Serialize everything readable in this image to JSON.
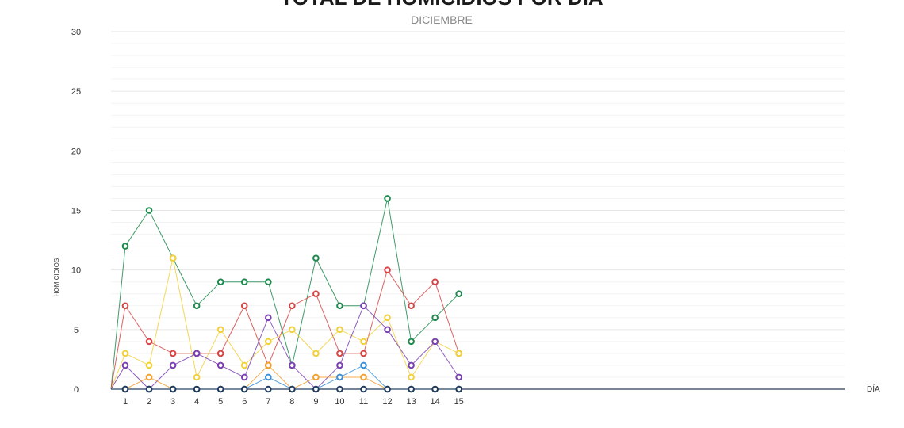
{
  "chart_data": {
    "type": "line",
    "title": "TOTAL DE HOMICIDIOS POR DÍA",
    "subtitle": "DICIEMBRE",
    "xlabel": "DÍA",
    "ylabel": "HOMICIDIOS",
    "ylim": [
      0,
      30
    ],
    "yticks": [
      0,
      5,
      10,
      15,
      20,
      25,
      30
    ],
    "x": [
      1,
      2,
      3,
      4,
      5,
      6,
      7,
      8,
      9,
      10,
      11,
      12,
      13,
      14,
      15
    ],
    "grid": true,
    "series": [
      {
        "color": "#1e8a4e",
        "values": [
          12,
          15,
          11,
          7,
          9,
          9,
          9,
          2,
          11,
          7,
          7,
          16,
          4,
          6,
          8
        ]
      },
      {
        "color": "#d64545",
        "values": [
          7,
          4,
          3,
          3,
          3,
          7,
          2,
          7,
          8,
          3,
          3,
          10,
          7,
          9,
          3
        ]
      },
      {
        "color": "#f2d03b",
        "values": [
          3,
          2,
          11,
          1,
          5,
          2,
          4,
          5,
          3,
          5,
          4,
          6,
          1,
          4,
          3
        ]
      },
      {
        "color": "#7a3fb0",
        "values": [
          2,
          0,
          2,
          3,
          2,
          1,
          6,
          2,
          0,
          2,
          7,
          5,
          2,
          4,
          1
        ]
      },
      {
        "color": "#f0a030",
        "values": [
          0,
          1,
          0,
          0,
          0,
          0,
          2,
          0,
          1,
          1,
          1,
          0,
          0,
          0,
          0
        ]
      },
      {
        "color": "#3a8fd6",
        "values": [
          0,
          0,
          0,
          0,
          0,
          0,
          1,
          0,
          0,
          1,
          2,
          0,
          0,
          0,
          0
        ]
      },
      {
        "color": "#1f3a5a",
        "values": [
          0,
          0,
          0,
          0,
          0,
          0,
          0,
          0,
          0,
          0,
          0,
          0,
          0,
          0,
          0
        ]
      }
    ]
  }
}
